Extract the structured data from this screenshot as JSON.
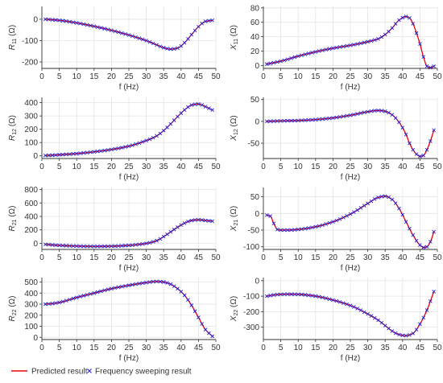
{
  "colors": {
    "predicted": "#e8000b",
    "sweep": "#1f1fd6",
    "grid": "#e3e3e3",
    "axis": "#333333"
  },
  "legend": {
    "predicted_label": "Predicted result",
    "sweep_label": "Frequency sweeping result",
    "predicted_icon": "red-line",
    "sweep_icon": "blue-x-marker"
  },
  "chart_data": [
    {
      "type": "line",
      "id": "R11",
      "ylabel": "R11 (Ω)",
      "ylabel_main": "R",
      "ylabel_sub": "11",
      "ylabel_unit": "(Ω)",
      "xlabel": "f (Hz)",
      "xlim": [
        0,
        50
      ],
      "ylim": [
        -230,
        60
      ],
      "xticks": [
        0,
        5,
        10,
        15,
        20,
        25,
        30,
        35,
        40,
        45,
        50
      ],
      "yticks": [
        0,
        -100,
        -200
      ],
      "series": [
        {
          "x": [
            1,
            5,
            10,
            15,
            20,
            25,
            30,
            33,
            35,
            37,
            39,
            41,
            43,
            45,
            47,
            49
          ],
          "y": [
            0,
            -5,
            -17,
            -33,
            -52,
            -74,
            -100,
            -120,
            -133,
            -140,
            -135,
            -110,
            -72,
            -35,
            -10,
            -5
          ]
        }
      ]
    },
    {
      "type": "line",
      "id": "X11",
      "ylabel": "X11 (Ω)",
      "ylabel_main": "X",
      "ylabel_sub": "11",
      "ylabel_unit": "(Ω)",
      "xlabel": "f (Hz)",
      "xlim": [
        0,
        50
      ],
      "ylim": [
        -4,
        82
      ],
      "xticks": [
        0,
        5,
        10,
        15,
        20,
        25,
        30,
        35,
        40,
        45,
        50
      ],
      "yticks": [
        0,
        20,
        40,
        60,
        80
      ],
      "series": [
        {
          "x": [
            1,
            5,
            10,
            15,
            20,
            25,
            30,
            33,
            35,
            37,
            39,
            41,
            42,
            43,
            44,
            45,
            46,
            47,
            48,
            49
          ],
          "y": [
            2,
            6,
            13,
            19,
            24,
            28,
            33,
            37,
            43,
            52,
            63,
            68,
            66,
            58,
            45,
            30,
            12,
            -1,
            -3,
            -1
          ]
        }
      ]
    },
    {
      "type": "line",
      "id": "R12",
      "ylabel": "R12 (Ω)",
      "ylabel_main": "R",
      "ylabel_sub": "12",
      "ylabel_unit": "(Ω)",
      "xlabel": "f (Hz)",
      "xlim": [
        0,
        50
      ],
      "ylim": [
        -20,
        440
      ],
      "xticks": [
        0,
        5,
        10,
        15,
        20,
        25,
        30,
        35,
        40,
        45,
        50
      ],
      "yticks": [
        0,
        100,
        200,
        300,
        400
      ],
      "series": [
        {
          "x": [
            1,
            5,
            10,
            15,
            20,
            25,
            30,
            33,
            35,
            37,
            39,
            41,
            43,
            45,
            47,
            49
          ],
          "y": [
            2,
            8,
            17,
            30,
            48,
            73,
            115,
            150,
            190,
            240,
            295,
            345,
            382,
            390,
            370,
            345
          ]
        }
      ]
    },
    {
      "type": "line",
      "id": "X12",
      "ylabel": "X12 (Ω)",
      "ylabel_main": "X",
      "ylabel_sub": "12",
      "ylabel_unit": "(Ω)",
      "xlabel": "f (Hz)",
      "xlim": [
        0,
        50
      ],
      "ylim": [
        -85,
        55
      ],
      "xticks": [
        0,
        5,
        10,
        15,
        20,
        25,
        30,
        35,
        40,
        45,
        50
      ],
      "yticks": [
        50,
        0,
        -50
      ],
      "series": [
        {
          "x": [
            1,
            5,
            10,
            15,
            20,
            25,
            30,
            33,
            35,
            37,
            39,
            41,
            42,
            43,
            44,
            45,
            46,
            47,
            48,
            49
          ],
          "y": [
            0,
            1,
            2,
            4,
            8,
            14,
            22,
            25,
            23,
            15,
            -2,
            -30,
            -50,
            -65,
            -75,
            -80,
            -78,
            -65,
            -45,
            -20
          ]
        }
      ]
    },
    {
      "type": "line",
      "id": "R21",
      "ylabel": "R21 (Ω)",
      "ylabel_main": "R",
      "ylabel_sub": "21",
      "ylabel_unit": "(Ω)",
      "xlabel": "f (Hz)",
      "xlim": [
        0,
        50
      ],
      "ylim": [
        -90,
        830
      ],
      "xticks": [
        0,
        5,
        10,
        15,
        20,
        25,
        30,
        35,
        40,
        45,
        50
      ],
      "yticks": [
        0,
        200,
        400,
        600,
        800
      ],
      "series": [
        {
          "x": [
            1,
            5,
            10,
            15,
            20,
            25,
            30,
            33,
            35,
            37,
            39,
            41,
            43,
            45,
            47,
            49
          ],
          "y": [
            -15,
            -30,
            -40,
            -45,
            -42,
            -30,
            0,
            40,
            100,
            170,
            240,
            300,
            340,
            350,
            340,
            330
          ]
        }
      ]
    },
    {
      "type": "line",
      "id": "X21",
      "ylabel": "X21 (Ω)",
      "ylabel_main": "X",
      "ylabel_sub": "21",
      "ylabel_unit": "(Ω)",
      "xlabel": "f (Hz)",
      "xlim": [
        0,
        50
      ],
      "ylim": [
        -108,
        78
      ],
      "xticks": [
        0,
        5,
        10,
        15,
        20,
        25,
        30,
        35,
        40,
        45,
        50
      ],
      "yticks": [
        50,
        0,
        -50,
        -100
      ],
      "series": [
        {
          "x": [
            1,
            2,
            3,
            4,
            5,
            7,
            10,
            15,
            20,
            25,
            30,
            33,
            35,
            37,
            39,
            41,
            43,
            45,
            46,
            47,
            48,
            49
          ],
          "y": [
            -5,
            -8,
            -30,
            -48,
            -50,
            -50,
            -48,
            -40,
            -25,
            -2,
            30,
            48,
            52,
            42,
            15,
            -25,
            -65,
            -95,
            -102,
            -100,
            -85,
            -55
          ]
        }
      ]
    },
    {
      "type": "line",
      "id": "R22",
      "ylabel": "R22 (Ω)",
      "ylabel_main": "R",
      "ylabel_sub": "22",
      "ylabel_unit": "(Ω)",
      "xlabel": "f (Hz)",
      "xlim": [
        0,
        50
      ],
      "ylim": [
        -20,
        540
      ],
      "xticks": [
        0,
        5,
        10,
        15,
        20,
        25,
        30,
        35,
        40,
        45,
        50
      ],
      "yticks": [
        0,
        100,
        200,
        300,
        400,
        500
      ],
      "series": [
        {
          "x": [
            1,
            3,
            5,
            10,
            15,
            20,
            25,
            30,
            33,
            35,
            37,
            39,
            41,
            43,
            45,
            47,
            49
          ],
          "y": [
            300,
            305,
            315,
            360,
            400,
            440,
            470,
            495,
            505,
            500,
            480,
            440,
            380,
            290,
            180,
            70,
            10
          ]
        }
      ]
    },
    {
      "type": "line",
      "id": "X22",
      "ylabel": "X22 (Ω)",
      "ylabel_main": "X",
      "ylabel_sub": "22",
      "ylabel_unit": "(Ω)",
      "xlabel": "f (Hz)",
      "xlim": [
        0,
        50
      ],
      "ylim": [
        -380,
        20
      ],
      "xticks": [
        0,
        5,
        10,
        15,
        20,
        25,
        30,
        35,
        40,
        45,
        50
      ],
      "yticks": [
        0,
        -100,
        -200,
        -300
      ],
      "series": [
        {
          "x": [
            1,
            3,
            5,
            7,
            10,
            15,
            20,
            25,
            30,
            33,
            35,
            37,
            39,
            41,
            43,
            45,
            47,
            49
          ],
          "y": [
            -100,
            -92,
            -88,
            -87,
            -88,
            -100,
            -125,
            -160,
            -215,
            -255,
            -290,
            -325,
            -348,
            -355,
            -340,
            -280,
            -190,
            -70
          ]
        }
      ]
    }
  ]
}
